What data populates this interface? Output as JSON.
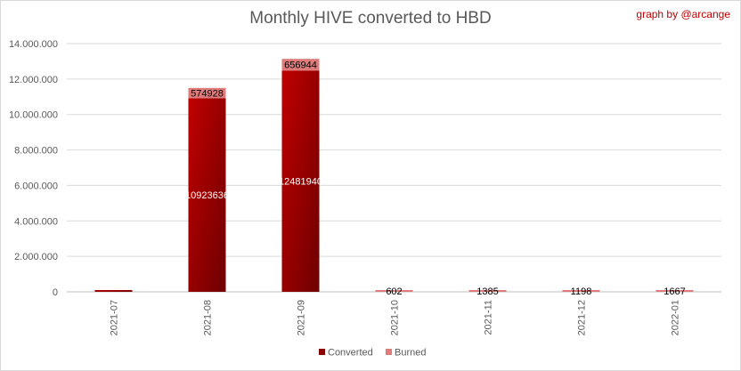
{
  "chart_data": {
    "type": "bar",
    "stacked": true,
    "title": "Monthly HIVE converted to HBD",
    "credit": "graph by @arcange",
    "categories": [
      "2021-07",
      "2021-08",
      "2021-09",
      "2021-10",
      "2021-11",
      "2021-12",
      "2022-01"
    ],
    "series": [
      {
        "name": "Converted",
        "color": "#8b0000",
        "values": [
          100000,
          10923636,
          12481940,
          0,
          0,
          0,
          0
        ],
        "labels": [
          "",
          "10923636",
          "12481940",
          "",
          "",
          "",
          ""
        ]
      },
      {
        "name": "Burned",
        "color": "#e07b7b",
        "values": [
          0,
          574928,
          656944,
          602,
          1385,
          1198,
          1667
        ],
        "labels": [
          "",
          "574928",
          "656944",
          "602",
          "1385",
          "1198",
          "1667"
        ]
      }
    ],
    "ylim": [
      0,
      14000000
    ],
    "yticks": [
      0,
      2000000,
      4000000,
      6000000,
      8000000,
      10000000,
      12000000,
      14000000
    ],
    "ytick_labels": [
      "0",
      "2.000.000",
      "4.000.000",
      "6.000.000",
      "8.000.000",
      "10.000.000",
      "12.000.000",
      "14.000.000"
    ],
    "xlabel": "",
    "ylabel": "",
    "grid": true,
    "legend_position": "bottom"
  }
}
